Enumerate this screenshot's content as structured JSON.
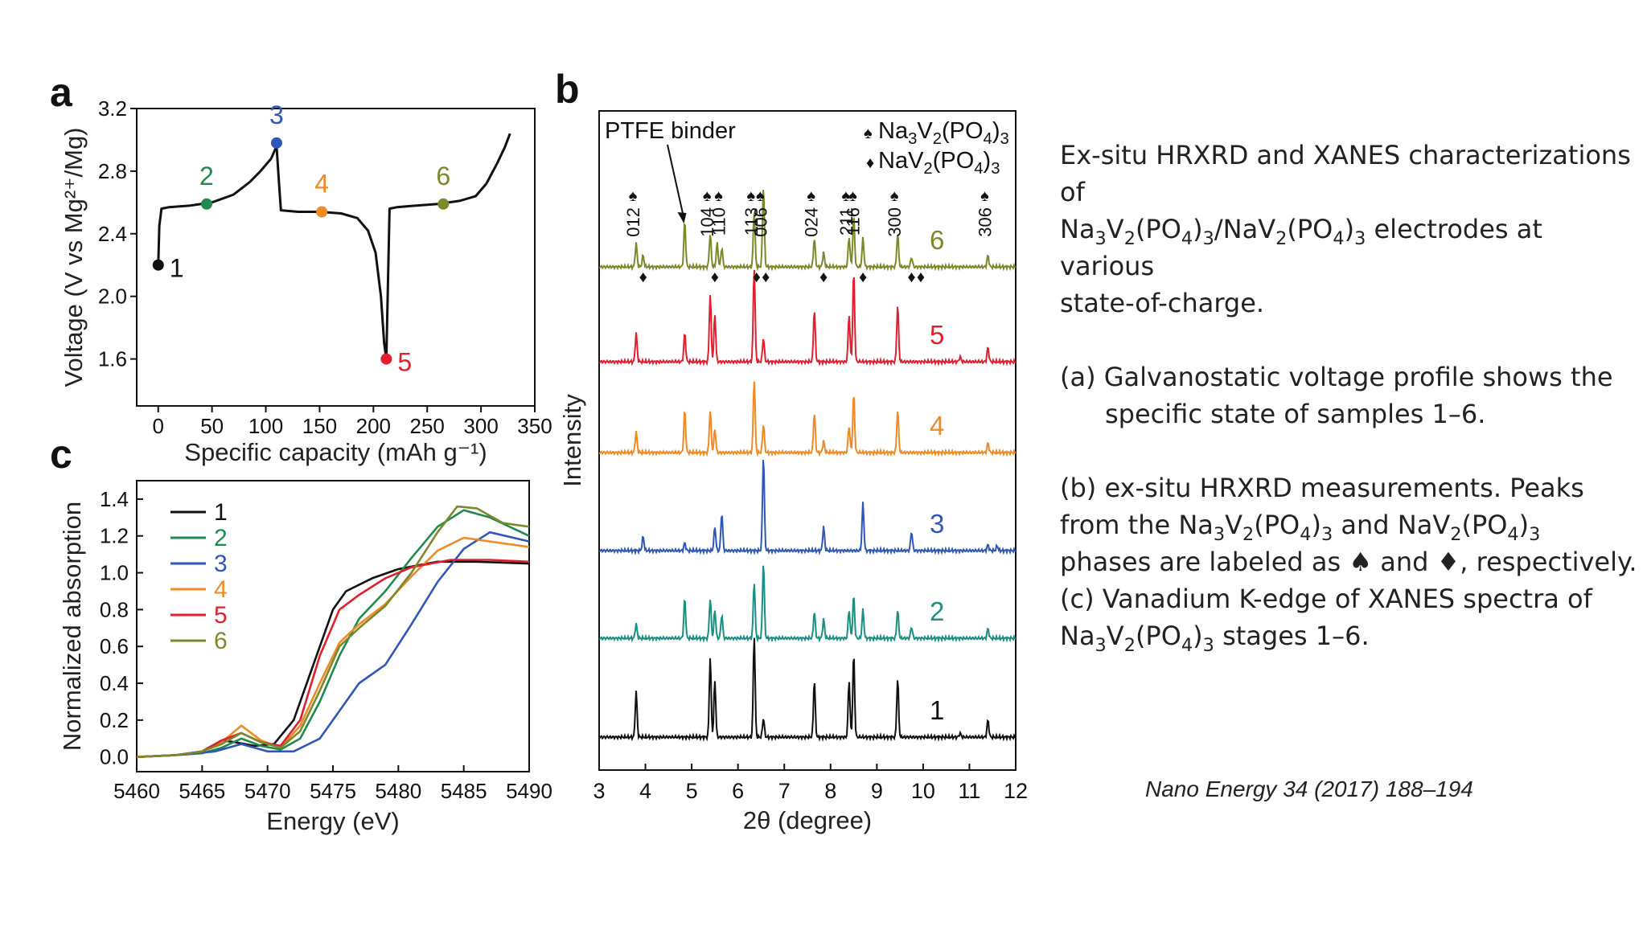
{
  "panels": {
    "a": {
      "letter": "a"
    },
    "b": {
      "letter": "b"
    },
    "c": {
      "letter": "c"
    }
  },
  "chart_data": [
    {
      "id": "a",
      "type": "line",
      "xlabel": "Specific capacity (mAh g⁻¹)",
      "ylabel": "Voltage (V vs Mg²⁺/Mg)",
      "xlim": [
        -20,
        350
      ],
      "ylim": [
        1.3,
        3.2
      ],
      "xticks": [
        0,
        50,
        100,
        150,
        200,
        250,
        300,
        350
      ],
      "yticks": [
        1.6,
        2.0,
        2.4,
        2.8,
        3.2
      ],
      "ytick_labels": [
        "1.6",
        "2.0",
        "2.4",
        "2.8",
        "3.2"
      ],
      "series": [
        {
          "color": "#111111",
          "x": [
            0,
            1,
            3,
            10,
            30,
            50,
            70,
            85,
            95,
            105,
            110,
            112,
            114,
            130,
            150,
            170,
            185,
            195,
            202,
            207,
            210,
            212,
            215,
            222,
            240,
            260,
            280,
            295,
            305,
            315,
            322,
            327
          ],
          "y": [
            2.2,
            2.45,
            2.56,
            2.57,
            2.58,
            2.6,
            2.65,
            2.73,
            2.8,
            2.88,
            2.96,
            2.75,
            2.55,
            2.54,
            2.54,
            2.53,
            2.5,
            2.42,
            2.28,
            2.0,
            1.7,
            1.6,
            2.56,
            2.57,
            2.58,
            2.59,
            2.61,
            2.64,
            2.72,
            2.85,
            2.95,
            3.04
          ]
        }
      ],
      "markers": [
        {
          "label": "1",
          "x": 0,
          "y": 2.2,
          "color": "#111111"
        },
        {
          "label": "2",
          "x": 45,
          "y": 2.59,
          "color": "#1f8a4c"
        },
        {
          "label": "3",
          "x": 110,
          "y": 2.98,
          "color": "#2e57b8"
        },
        {
          "label": "4",
          "x": 152,
          "y": 2.54,
          "color": "#f08a24"
        },
        {
          "label": "5",
          "x": 212,
          "y": 1.6,
          "color": "#e0202e"
        },
        {
          "label": "6",
          "x": 265,
          "y": 2.59,
          "color": "#7a8a2a"
        }
      ]
    },
    {
      "id": "b",
      "type": "line",
      "xlabel": "2θ (degree)",
      "ylabel": "Intensity",
      "xlim": [
        3,
        12
      ],
      "xticks": [
        3,
        4,
        5,
        6,
        7,
        8,
        9,
        10,
        11,
        12
      ],
      "series": [
        {
          "name": "6",
          "color": "#7a8a2a",
          "peaks": [
            [
              3.8,
              0.25
            ],
            [
              3.95,
              0.12
            ],
            [
              4.85,
              0.48
            ],
            [
              5.4,
              0.35
            ],
            [
              5.55,
              0.25
            ],
            [
              5.65,
              0.2
            ],
            [
              6.35,
              0.6
            ],
            [
              6.55,
              0.85
            ],
            [
              7.65,
              0.3
            ],
            [
              7.85,
              0.15
            ],
            [
              8.4,
              0.32
            ],
            [
              8.5,
              0.55
            ],
            [
              8.7,
              0.3
            ],
            [
              9.45,
              0.35
            ],
            [
              9.75,
              0.1
            ],
            [
              11.4,
              0.12
            ]
          ]
        },
        {
          "name": "5",
          "color": "#e0202e",
          "peaks": [
            [
              3.8,
              0.3
            ],
            [
              4.85,
              0.3
            ],
            [
              5.4,
              0.72
            ],
            [
              5.5,
              0.5
            ],
            [
              6.35,
              1.0
            ],
            [
              6.55,
              0.25
            ],
            [
              7.65,
              0.55
            ],
            [
              8.4,
              0.5
            ],
            [
              8.5,
              0.95
            ],
            [
              9.45,
              0.6
            ],
            [
              11.4,
              0.15
            ],
            [
              10.8,
              0.05
            ]
          ]
        },
        {
          "name": "4",
          "color": "#f08a24",
          "peaks": [
            [
              3.8,
              0.22
            ],
            [
              4.85,
              0.45
            ],
            [
              5.4,
              0.45
            ],
            [
              5.5,
              0.25
            ],
            [
              6.35,
              0.78
            ],
            [
              6.55,
              0.3
            ],
            [
              7.65,
              0.42
            ],
            [
              7.85,
              0.12
            ],
            [
              8.4,
              0.28
            ],
            [
              8.5,
              0.62
            ],
            [
              9.45,
              0.45
            ],
            [
              11.4,
              0.1
            ]
          ]
        },
        {
          "name": "3",
          "color": "#2e57b8",
          "peaks": [
            [
              3.95,
              0.15
            ],
            [
              4.85,
              0.08
            ],
            [
              5.5,
              0.25
            ],
            [
              5.65,
              0.4
            ],
            [
              6.55,
              1.0
            ],
            [
              7.85,
              0.25
            ],
            [
              8.7,
              0.5
            ],
            [
              9.75,
              0.2
            ],
            [
              11.4,
              0.06
            ],
            [
              11.6,
              0.05
            ]
          ]
        },
        {
          "name": "2",
          "color": "#1a9080",
          "peaks": [
            [
              3.8,
              0.15
            ],
            [
              4.85,
              0.42
            ],
            [
              5.4,
              0.42
            ],
            [
              5.5,
              0.3
            ],
            [
              5.65,
              0.25
            ],
            [
              6.35,
              0.6
            ],
            [
              6.55,
              0.8
            ],
            [
              7.65,
              0.28
            ],
            [
              7.85,
              0.2
            ],
            [
              8.4,
              0.3
            ],
            [
              8.5,
              0.45
            ],
            [
              8.7,
              0.3
            ],
            [
              9.45,
              0.3
            ],
            [
              9.75,
              0.12
            ],
            [
              11.4,
              0.1
            ]
          ]
        },
        {
          "name": "1",
          "color": "#111111",
          "peaks": [
            [
              3.8,
              0.48
            ],
            [
              5.4,
              0.85
            ],
            [
              5.5,
              0.6
            ],
            [
              6.35,
              1.08
            ],
            [
              6.55,
              0.2
            ],
            [
              7.65,
              0.6
            ],
            [
              8.4,
              0.6
            ],
            [
              8.5,
              0.88
            ],
            [
              9.45,
              0.62
            ],
            [
              11.4,
              0.18
            ],
            [
              10.8,
              0.04
            ]
          ]
        }
      ],
      "annotations": {
        "binder": "PTFE binder",
        "legend_phase_1": {
          "symbol": "♠",
          "parts": [
            [
              "Na",
              ""
            ],
            [
              "3",
              "sub"
            ],
            [
              "V",
              ""
            ],
            [
              "2",
              "sub"
            ],
            [
              "(PO",
              ""
            ],
            [
              "4",
              "sub"
            ],
            [
              ")",
              ""
            ],
            [
              "3",
              "sub"
            ]
          ]
        },
        "legend_phase_2": {
          "symbol": "♦",
          "parts": [
            [
              "NaV",
              ""
            ],
            [
              "2",
              "sub"
            ],
            [
              "(PO",
              ""
            ],
            [
              "4",
              "sub"
            ],
            [
              ")",
              ""
            ],
            [
              "3",
              "sub"
            ]
          ]
        },
        "spade_symbol": "♠",
        "diamond_symbol": "♦",
        "hkl": [
          {
            "label": "012",
            "x": 3.8
          },
          {
            "label": "104",
            "x": 5.4
          },
          {
            "label": "110",
            "x": 5.65
          },
          {
            "label": "113",
            "x": 6.35
          },
          {
            "label": "006",
            "x": 6.55
          },
          {
            "label": "024",
            "x": 7.65
          },
          {
            "label": "211",
            "x": 8.4
          },
          {
            "label": "116",
            "x": 8.55
          },
          {
            "label": "300",
            "x": 9.45
          },
          {
            "label": "306",
            "x": 11.4
          }
        ],
        "diamond_positions": [
          3.95,
          5.5,
          6.4,
          6.6,
          7.85,
          8.7,
          9.75,
          9.95
        ]
      }
    },
    {
      "id": "c",
      "type": "line",
      "xlabel": "Energy (eV)",
      "ylabel": "Normalized absorption",
      "xlim": [
        5460,
        5490
      ],
      "ylim": [
        -0.08,
        1.5
      ],
      "xticks": [
        5460,
        5465,
        5470,
        5475,
        5480,
        5485,
        5490
      ],
      "yticks": [
        0.0,
        0.2,
        0.4,
        0.6,
        0.8,
        1.0,
        1.2,
        1.4
      ],
      "ytick_labels": [
        "0.0",
        "0.2",
        "0.4",
        "0.6",
        "0.8",
        "1.0",
        "1.2",
        "1.4"
      ],
      "legend_position": "top-left",
      "series": [
        {
          "name": "1",
          "color": "#111111",
          "x": [
            5460,
            5463,
            5465,
            5466.5,
            5467.5,
            5469,
            5470.5,
            5472,
            5473.5,
            5475,
            5476,
            5478,
            5480,
            5483,
            5486,
            5490
          ],
          "y": [
            0.0,
            0.01,
            0.03,
            0.09,
            0.08,
            0.06,
            0.07,
            0.2,
            0.5,
            0.8,
            0.9,
            0.97,
            1.02,
            1.06,
            1.06,
            1.05
          ]
        },
        {
          "name": "2",
          "color": "#1f8a4c",
          "x": [
            5460,
            5463,
            5465,
            5466.5,
            5468,
            5469.5,
            5471,
            5472.5,
            5474,
            5475.5,
            5477,
            5479,
            5481,
            5483,
            5485,
            5487,
            5490
          ],
          "y": [
            0.0,
            0.01,
            0.02,
            0.05,
            0.1,
            0.06,
            0.04,
            0.1,
            0.3,
            0.55,
            0.75,
            0.9,
            1.08,
            1.25,
            1.34,
            1.3,
            1.2
          ]
        },
        {
          "name": "3",
          "color": "#2e57b8",
          "x": [
            5460,
            5463,
            5466,
            5468,
            5470,
            5472,
            5474,
            5475.5,
            5477,
            5479,
            5481,
            5483,
            5485,
            5487,
            5490
          ],
          "y": [
            0.0,
            0.01,
            0.03,
            0.07,
            0.03,
            0.03,
            0.1,
            0.25,
            0.4,
            0.5,
            0.72,
            0.95,
            1.13,
            1.22,
            1.17
          ]
        },
        {
          "name": "4",
          "color": "#f08a24",
          "x": [
            5460,
            5463,
            5465,
            5466.5,
            5468,
            5469.5,
            5471,
            5472.5,
            5474,
            5475.5,
            5477,
            5479,
            5481,
            5483,
            5485,
            5487,
            5490
          ],
          "y": [
            0.0,
            0.01,
            0.03,
            0.08,
            0.17,
            0.09,
            0.05,
            0.17,
            0.4,
            0.62,
            0.72,
            0.83,
            0.98,
            1.12,
            1.19,
            1.17,
            1.14
          ]
        },
        {
          "name": "5",
          "color": "#e0202e",
          "x": [
            5460,
            5463,
            5465,
            5466.5,
            5468,
            5469.5,
            5471,
            5472.5,
            5474,
            5475.5,
            5477,
            5479,
            5481,
            5484,
            5487,
            5490
          ],
          "y": [
            0.0,
            0.01,
            0.03,
            0.09,
            0.13,
            0.08,
            0.06,
            0.2,
            0.55,
            0.8,
            0.88,
            0.97,
            1.03,
            1.07,
            1.07,
            1.06
          ]
        },
        {
          "name": "6",
          "color": "#7a8a2a",
          "x": [
            5460,
            5463,
            5465,
            5466.5,
            5468,
            5469.5,
            5471,
            5472.5,
            5474,
            5475.5,
            5477,
            5479,
            5481,
            5483,
            5484.5,
            5486,
            5488,
            5490
          ],
          "y": [
            0.0,
            0.01,
            0.03,
            0.07,
            0.13,
            0.08,
            0.05,
            0.14,
            0.36,
            0.6,
            0.7,
            0.82,
            1.0,
            1.22,
            1.36,
            1.35,
            1.27,
            1.25
          ]
        }
      ]
    }
  ],
  "caption": {
    "lines": [
      [
        [
          "Ex-situ HRXRD and XANES characterizations of",
          ""
        ]
      ],
      [
        [
          "Na",
          ""
        ],
        [
          "3",
          "sub"
        ],
        [
          "V",
          ""
        ],
        [
          "2",
          "sub"
        ],
        [
          "(PO",
          ""
        ],
        [
          "4",
          "sub"
        ],
        [
          ")",
          ""
        ],
        [
          "3",
          "sub"
        ],
        [
          "/NaV",
          ""
        ],
        [
          "2",
          "sub"
        ],
        [
          "(PO",
          ""
        ],
        [
          "4",
          "sub"
        ],
        [
          ")",
          ""
        ],
        [
          "3",
          "sub"
        ],
        [
          " electrodes at various",
          ""
        ]
      ],
      [
        [
          "state-of-charge.",
          ""
        ]
      ]
    ],
    "item_a": [
      [
        "(a)  Galvanostatic voltage profile shows the specific state of samples 1–6.",
        ""
      ]
    ],
    "item_b": [
      [
        "(b) ex-situ HRXRD measurements. Peaks from the Na",
        ""
      ],
      [
        "3",
        "sub"
      ],
      [
        "V",
        ""
      ],
      [
        "2",
        "sub"
      ],
      [
        "(PO",
        ""
      ],
      [
        "4",
        "sub"
      ],
      [
        ")",
        ""
      ],
      [
        "3",
        "sub"
      ],
      [
        " and NaV",
        ""
      ],
      [
        "2",
        "sub"
      ],
      [
        "(PO",
        ""
      ],
      [
        "4",
        "sub"
      ],
      [
        ")",
        ""
      ],
      [
        "3",
        "sub"
      ],
      [
        " phases are labeled as ♠ and ♦, respectively.",
        ""
      ]
    ],
    "item_c": [
      [
        "(c) Vanadium K-edge of XANES spectra of Na",
        ""
      ],
      [
        "3",
        "sub"
      ],
      [
        "V",
        ""
      ],
      [
        "2",
        "sub"
      ],
      [
        "(PO",
        ""
      ],
      [
        "4",
        "sub"
      ],
      [
        ")",
        ""
      ],
      [
        "3",
        "sub"
      ],
      [
        " stages 1–6.",
        ""
      ]
    ]
  },
  "citation": "Nano Energy 34 (2017) 188–194"
}
